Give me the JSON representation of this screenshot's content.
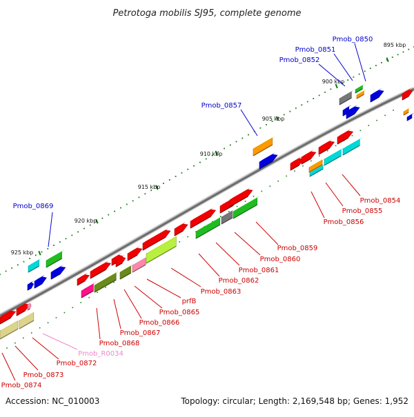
{
  "title": "Petrotoga mobilis SJ95, complete genome",
  "footer": {
    "accession": "Accession: NC_010003",
    "summary": "Topology: circular; Length: 2,169,548 bp; Genes: 1,952"
  },
  "ticks": [
    "895 kbp",
    "900 kbp",
    "905 kbp",
    "910 kbp",
    "915 kbp",
    "920 kbp",
    "925 kbp"
  ],
  "colors": {
    "red": "#f00000",
    "blue": "#0000dd",
    "green": "#22bb22",
    "cyan": "#00d8d8",
    "orange": "#ff9900",
    "gray": "#777777",
    "olive": "#6a8a1a",
    "khaki": "#ddd48a",
    "pink": "#ff88aa",
    "magenta": "#ff1188",
    "lime": "#b8f040",
    "upper_label": "#0000cc",
    "lower_label": "#cc0000",
    "rna_label": "#ee88cc"
  },
  "labels_upper": [
    "Pmob_0850",
    "Pmob_0851",
    "Pmob_0852",
    "Pmob_0857",
    "Pmob_0869"
  ],
  "labels_lower": [
    "Pmob_0854",
    "Pmob_0855",
    "Pmob_0856",
    "Pmob_0859",
    "Pmob_0860",
    "Pmob_0861",
    "Pmob_0862",
    "Pmob_0863",
    "prfB",
    "Pmob_0865",
    "Pmob_0866",
    "Pmob_0867",
    "Pmob_0868",
    "Pmob_R0034",
    "Pmob_0872",
    "Pmob_0873",
    "Pmob_0874"
  ]
}
